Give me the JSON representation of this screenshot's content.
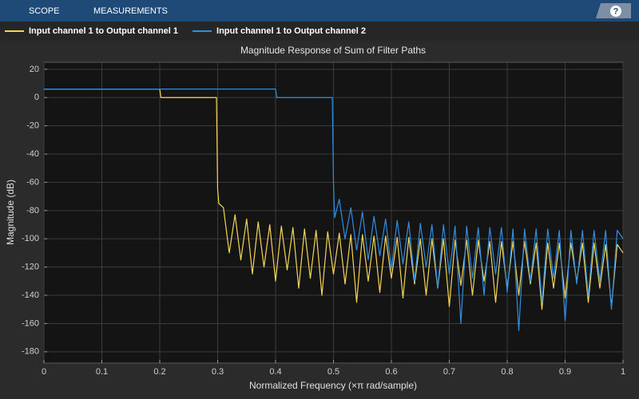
{
  "toolbar": {
    "tabs": [
      "SCOPE",
      "MEASUREMENTS"
    ],
    "help": "?"
  },
  "chart_data": {
    "type": "line",
    "title": "Magnitude Response of Sum of Filter Paths",
    "xlabel": "Normalized Frequency (×π rad/sample)",
    "ylabel": "Magnitude (dB)",
    "xlim": [
      0,
      1
    ],
    "xticks": [
      0,
      0.1,
      0.2,
      0.3,
      0.4,
      0.5,
      0.6,
      0.7,
      0.8,
      0.9,
      1
    ],
    "ylim": [
      -188,
      25
    ],
    "yticks": [
      20,
      0,
      -20,
      -40,
      -60,
      -80,
      -100,
      -120,
      -140,
      -160,
      -180
    ],
    "grid": true,
    "legend": "top",
    "series": [
      {
        "name": "Input channel 1 to Output channel 1",
        "color": "#f5d556",
        "x": [
          0,
          0.2,
          0.202,
          0.298,
          0.3,
          0.302,
          0.31,
          0.32,
          0.33,
          0.34,
          0.35,
          0.36,
          0.37,
          0.38,
          0.39,
          0.4,
          0.41,
          0.42,
          0.43,
          0.44,
          0.45,
          0.46,
          0.47,
          0.48,
          0.49,
          0.5,
          0.51,
          0.52,
          0.53,
          0.54,
          0.55,
          0.56,
          0.57,
          0.58,
          0.59,
          0.6,
          0.61,
          0.62,
          0.63,
          0.64,
          0.65,
          0.66,
          0.67,
          0.68,
          0.69,
          0.7,
          0.71,
          0.72,
          0.73,
          0.74,
          0.75,
          0.76,
          0.77,
          0.78,
          0.79,
          0.8,
          0.81,
          0.82,
          0.83,
          0.84,
          0.85,
          0.86,
          0.87,
          0.88,
          0.89,
          0.9,
          0.91,
          0.92,
          0.93,
          0.94,
          0.95,
          0.96,
          0.97,
          0.98,
          0.99,
          1
        ],
        "values": [
          6,
          6,
          0,
          0,
          -65,
          -75,
          -78,
          -110,
          -83,
          -115,
          -86,
          -125,
          -88,
          -120,
          -90,
          -130,
          -91,
          -122,
          -92,
          -135,
          -93,
          -128,
          -94,
          -140,
          -95,
          -125,
          -96,
          -132,
          -97,
          -145,
          -97,
          -130,
          -98,
          -138,
          -98,
          -128,
          -99,
          -142,
          -99,
          -132,
          -100,
          -140,
          -100,
          -135,
          -100,
          -148,
          -101,
          -133,
          -101,
          -140,
          -101,
          -130,
          -102,
          -145,
          -102,
          -135,
          -102,
          -140,
          -102,
          -132,
          -103,
          -150,
          -103,
          -135,
          -103,
          -142,
          -103,
          -130,
          -103,
          -145,
          -103,
          -135,
          -104,
          -148,
          -104,
          -110
        ]
      },
      {
        "name": "Input channel 1 to Output channel 2",
        "color": "#2f8ee0",
        "x": [
          0,
          0.4,
          0.402,
          0.498,
          0.5,
          0.502,
          0.51,
          0.52,
          0.53,
          0.54,
          0.55,
          0.56,
          0.57,
          0.58,
          0.59,
          0.6,
          0.61,
          0.62,
          0.63,
          0.64,
          0.65,
          0.66,
          0.67,
          0.68,
          0.69,
          0.7,
          0.71,
          0.72,
          0.73,
          0.74,
          0.75,
          0.76,
          0.77,
          0.78,
          0.79,
          0.8,
          0.81,
          0.82,
          0.83,
          0.84,
          0.85,
          0.86,
          0.87,
          0.88,
          0.89,
          0.9,
          0.91,
          0.92,
          0.93,
          0.94,
          0.95,
          0.96,
          0.97,
          0.98,
          0.99,
          1
        ],
        "values": [
          6,
          6,
          0,
          0,
          -60,
          -85,
          -72,
          -100,
          -78,
          -108,
          -81,
          -115,
          -84,
          -112,
          -86,
          -122,
          -87,
          -118,
          -88,
          -130,
          -89,
          -120,
          -90,
          -135,
          -90,
          -125,
          -91,
          -160,
          -91,
          -128,
          -92,
          -140,
          -92,
          -125,
          -92,
          -138,
          -93,
          -165,
          -93,
          -130,
          -93,
          -145,
          -93,
          -128,
          -94,
          -158,
          -94,
          -132,
          -94,
          -140,
          -94,
          -130,
          -94,
          -150,
          -94,
          -100
        ]
      }
    ]
  }
}
